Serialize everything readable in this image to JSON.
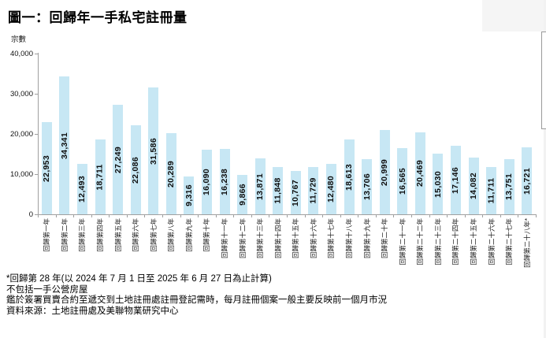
{
  "title": "圖一：回歸年一手私宅註冊量",
  "chart_data": {
    "type": "bar",
    "title": "圖一：回歸年一手私宅註冊量",
    "y_axis_title": "宗數",
    "ylim": [
      0,
      40000
    ],
    "y_tick_values": [
      0,
      10000,
      20000,
      30000,
      40000
    ],
    "y_tick_labels": [
      "0",
      "10,000",
      "20,000",
      "30,000",
      "40,000"
    ],
    "grid": false,
    "legend": false,
    "bar_color": "#c7e7f4",
    "axis_color": "#a0a0a0",
    "categories": [
      "回歸第一年",
      "回歸第二年",
      "回歸第三年",
      "回歸第四年",
      "回歸第五年",
      "回歸第六年",
      "回歸第七年",
      "回歸第八年",
      "回歸第九年",
      "回歸第十年",
      "回歸第十一年",
      "回歸第十二年",
      "回歸第十三年",
      "回歸第十四年",
      "回歸第十五年",
      "回歸第十六年",
      "回歸第十七年",
      "回歸第十八年",
      "回歸第十九年",
      "回歸第二十年",
      "回歸第二十一年",
      "回歸第二十二年",
      "回歸第二十三年",
      "回歸第二十四年",
      "回歸第二十五年",
      "回歸第二十六年",
      "回歸第二十七年",
      "回歸第二十八年*"
    ],
    "values": [
      22953,
      34341,
      12493,
      18711,
      27249,
      22086,
      31586,
      20289,
      9316,
      16090,
      16238,
      9866,
      13871,
      11848,
      10767,
      11729,
      12480,
      18613,
      13706,
      20999,
      16565,
      20469,
      15030,
      17146,
      14082,
      11711,
      13751,
      16721
    ],
    "value_labels": [
      "22,953",
      "34,341",
      "12,493",
      "18,711",
      "27,249",
      "22,086",
      "31,586",
      "20,289",
      "9,316",
      "16,090",
      "16,238",
      "9,866",
      "13,871",
      "11,848",
      "10,767",
      "11,729",
      "12,480",
      "18,613",
      "13,706",
      "20,999",
      "16,565",
      "20,469",
      "15,030",
      "17,146",
      "14,082",
      "11,711",
      "13,751",
      "16,721"
    ]
  },
  "footnotes": [
    "*回歸第 28 年(以 2024 年 7 月 1 日至 2025 年 6 月 27 日為止計算)",
    "不包括一手公營房屋",
    "鑑於簽署買賣合約至遞交到土地註冊處註冊登記需時，每月註冊個案一般主要反映前一個月市況",
    "資料來源：土地註冊處及美聯物業研究中心"
  ]
}
